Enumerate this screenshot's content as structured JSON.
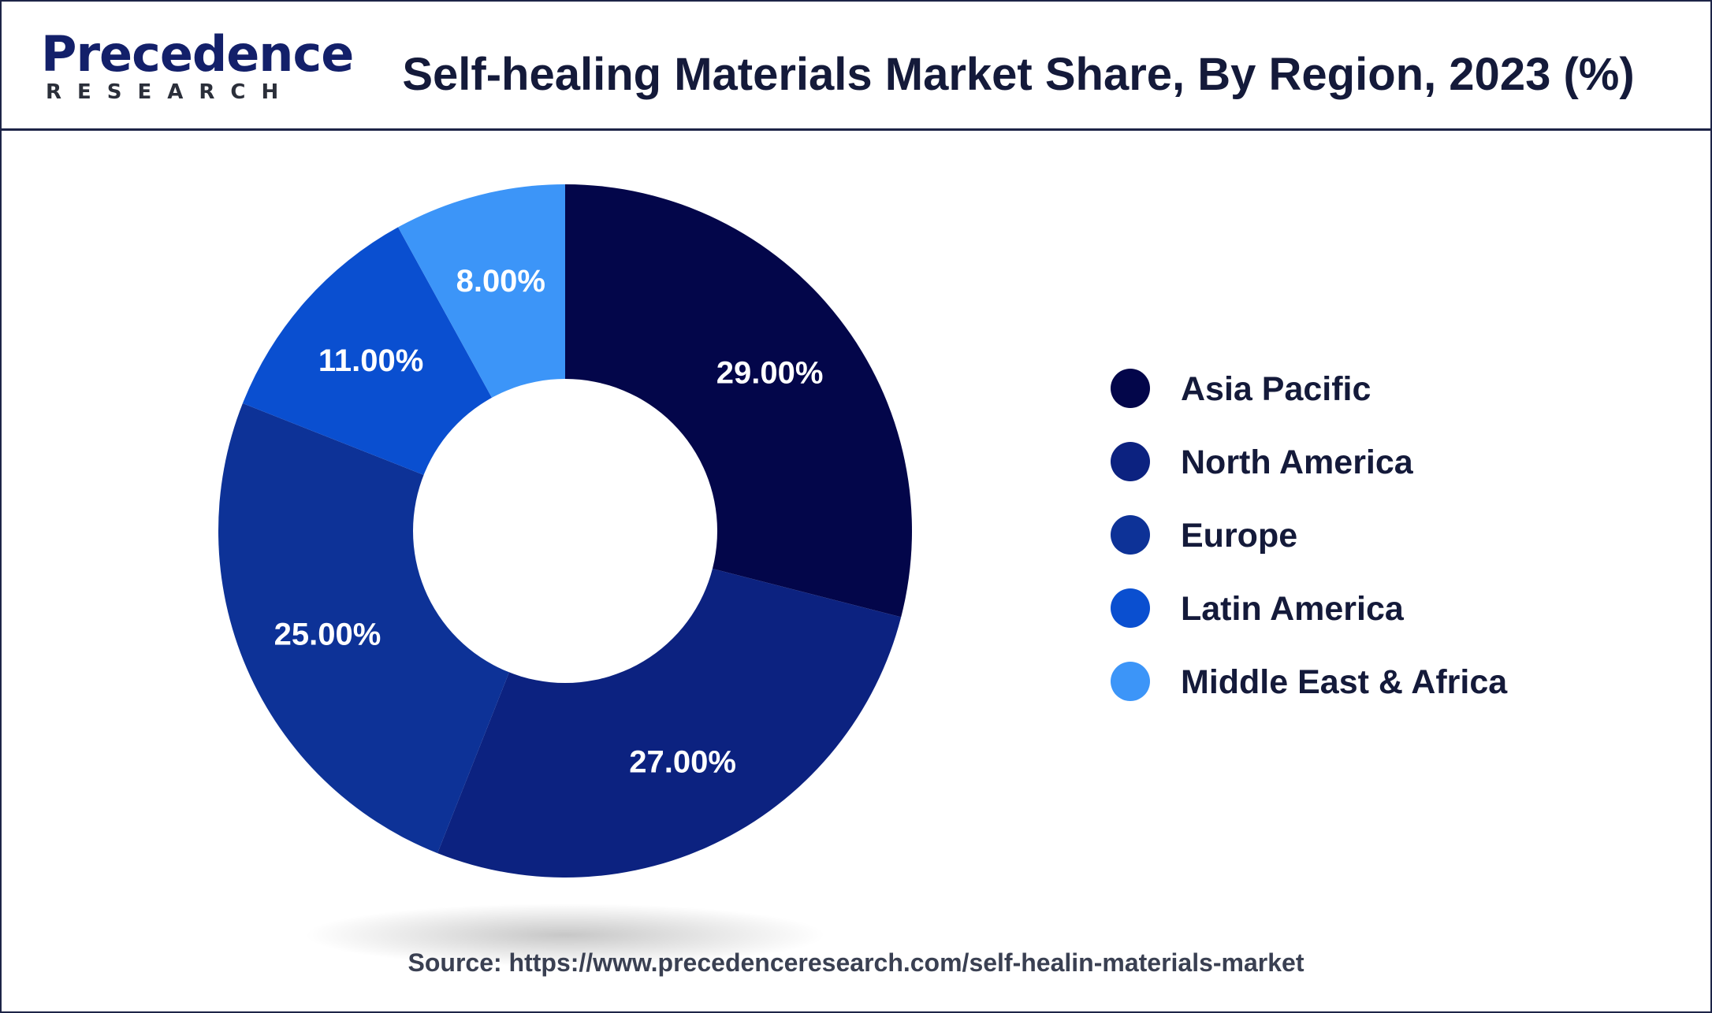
{
  "header": {
    "logo_text": "Precedence",
    "logo_subtext": "RESEARCH",
    "title": "Self-healing Materials Market Share, By Region, 2023 (%)"
  },
  "chart_data": {
    "type": "pie",
    "donut": true,
    "title": "Self-healing Materials Market Share, By Region, 2023 (%)",
    "categories": [
      "Asia Pacific",
      "North America",
      "Europe",
      "Latin America",
      "Middle East & Africa"
    ],
    "values": [
      29,
      27,
      25,
      11,
      8
    ],
    "labels": [
      "29.00%",
      "27.00%",
      "25.00%",
      "11.00%",
      "8.00%"
    ],
    "colors": [
      "#03064a",
      "#0c2280",
      "#0d3297",
      "#0a4fd0",
      "#3c95f8"
    ],
    "legend_position": "right"
  },
  "footer": {
    "source": "Source: https://www.precedenceresearch.com/self-healin-materials-market"
  }
}
